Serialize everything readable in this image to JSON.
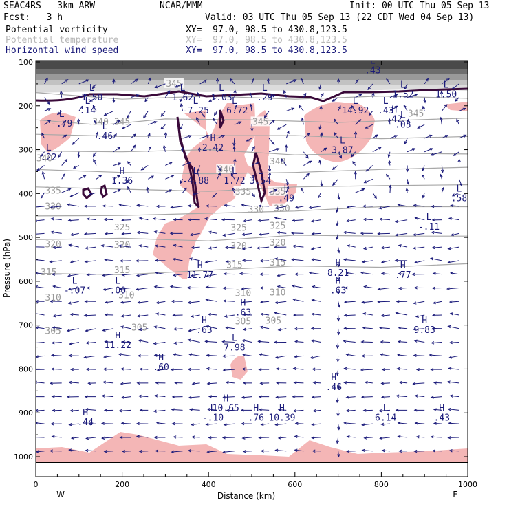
{
  "header": {
    "model": "SEAC4RS   3km ARW",
    "org": "NCAR/MMM",
    "init": "Init: 00 UTC Thu 05 Sep 13",
    "fcst": "Fcst:   3 h",
    "valid": "Valid: 03 UTC Thu 05 Sep 13 (22 CDT Wed 04 Sep 13)",
    "fields": [
      {
        "name": "Potential vorticity",
        "color": "#000000",
        "xy": "XY=  97.0, 98.5 to 430.8,123.5"
      },
      {
        "name": "Potential temperature",
        "color": "#b8b8b8",
        "xy": "XY=  97.0, 98.5 to 430.8,123.5"
      },
      {
        "name": "Horizontal wind speed",
        "color": "#1a1a7a",
        "xy": "XY=  97.0, 98.5 to 430.8,123.5"
      }
    ]
  },
  "chart_data": {
    "type": "cross-section",
    "xlabel": "Distance (km)",
    "ylabel": "Pressure (hPa)",
    "xlim": [
      0,
      1000
    ],
    "ylim": [
      1040,
      100
    ],
    "x_ticks": [
      0,
      200,
      400,
      600,
      800,
      1000
    ],
    "y_ticks": [
      100,
      200,
      300,
      400,
      500,
      600,
      700,
      800,
      900,
      1000
    ],
    "x_end_labels": {
      "left": "W",
      "right": "E"
    },
    "colors": {
      "pv_shading": "#f4b6b6",
      "stratosphere_shading": "#cccccc",
      "theta_contour": "#a8a8a8",
      "pv_contour": "#3a0a3a",
      "wind_vectors": "#1a1a7a"
    },
    "theta_contours": [
      {
        "label": "345",
        "points": [
          [
            0,
            170
          ],
          [
            200,
            185
          ],
          [
            400,
            178
          ],
          [
            600,
            185
          ],
          [
            800,
            178
          ],
          [
            1000,
            183
          ]
        ],
        "label_at": [
          [
            320,
            150
          ],
          [
            200,
            237
          ],
          [
            520,
            237
          ],
          [
            880,
            218
          ]
        ]
      },
      {
        "label": "340",
        "points": [
          [
            0,
            232
          ],
          [
            150,
            244
          ],
          [
            300,
            230
          ],
          [
            500,
            232
          ],
          [
            700,
            238
          ],
          [
            1000,
            228
          ]
        ],
        "label_at": [
          [
            20,
            320
          ],
          [
            150,
            237
          ],
          [
            440,
            345
          ],
          [
            560,
            327
          ]
        ]
      },
      {
        "label": "335",
        "points": [
          [
            0,
            265
          ],
          [
            200,
            270
          ],
          [
            400,
            268
          ],
          [
            600,
            268
          ],
          [
            800,
            275
          ],
          [
            1000,
            270
          ]
        ],
        "label_at": [
          [
            40,
            394
          ],
          [
            480,
            396
          ],
          [
            560,
            396
          ]
        ]
      },
      {
        "label": "330",
        "points": [
          [
            0,
            303
          ],
          [
            200,
            305
          ],
          [
            400,
            300
          ],
          [
            600,
            312
          ],
          [
            800,
            308
          ],
          [
            1000,
            310
          ]
        ],
        "label_at": [
          [
            40,
            430
          ],
          [
            510,
            437
          ],
          [
            570,
            435
          ]
        ]
      },
      {
        "label": "325",
        "points": [
          [
            0,
            345
          ],
          [
            200,
            352
          ],
          [
            400,
            355
          ],
          [
            600,
            352
          ],
          [
            800,
            345
          ],
          [
            1000,
            340
          ]
        ],
        "label_at": [
          [
            200,
            478
          ],
          [
            470,
            479
          ],
          [
            560,
            474
          ]
        ]
      },
      {
        "label": "320",
        "points": [
          [
            0,
            385
          ],
          [
            200,
            390
          ],
          [
            400,
            395
          ],
          [
            600,
            385
          ],
          [
            800,
            382
          ],
          [
            1000,
            380
          ]
        ],
        "label_at": [
          [
            40,
            516
          ],
          [
            200,
            518
          ],
          [
            470,
            520
          ],
          [
            560,
            512
          ]
        ]
      },
      {
        "label": "315",
        "points": [
          [
            0,
            451
          ],
          [
            200,
            450
          ],
          [
            400,
            445
          ],
          [
            600,
            440
          ],
          [
            800,
            430
          ],
          [
            1000,
            430
          ]
        ],
        "label_at": [
          [
            30,
            580
          ],
          [
            200,
            575
          ],
          [
            460,
            563
          ],
          [
            560,
            558
          ]
        ]
      },
      {
        "label": "310",
        "points": [
          [
            0,
            505
          ],
          [
            200,
            502
          ],
          [
            400,
            508
          ],
          [
            600,
            495
          ],
          [
            800,
            497
          ],
          [
            1000,
            497
          ]
        ],
        "label_at": [
          [
            40,
            638
          ],
          [
            210,
            632
          ],
          [
            480,
            628
          ],
          [
            560,
            626
          ]
        ]
      },
      {
        "label": "305",
        "points": [
          [
            0,
            582
          ],
          [
            200,
            585
          ],
          [
            400,
            575
          ],
          [
            600,
            565
          ],
          [
            800,
            568
          ],
          [
            1000,
            560
          ]
        ],
        "label_at": [
          [
            40,
            714
          ],
          [
            240,
            706
          ],
          [
            480,
            692
          ],
          [
            550,
            690
          ]
        ]
      }
    ],
    "extrema": [
      {
        "kind": "L",
        "value": ".43",
        "x": 780,
        "y": 113
      },
      {
        "kind": "L",
        "value": "1.50",
        "x": 130,
        "y": 175
      },
      {
        "kind": "L",
        "value": "1.62",
        "x": 340,
        "y": 175
      },
      {
        "kind": "L",
        "value": "1.03",
        "x": 430,
        "y": 175
      },
      {
        "kind": "L",
        "value": ".29",
        "x": 530,
        "y": 175
      },
      {
        "kind": "L",
        "value": "1.52",
        "x": 850,
        "y": 168
      },
      {
        "kind": "L",
        "value": "1.50",
        "x": 950,
        "y": 168
      },
      {
        "kind": "L",
        "value": ".14",
        "x": 120,
        "y": 205
      },
      {
        "kind": "L",
        "value": "-7.25",
        "x": 370,
        "y": 205
      },
      {
        "kind": "L",
        "value": "-6.72",
        "x": 460,
        "y": 205
      },
      {
        "kind": "L",
        "value": "14.92",
        "x": 740,
        "y": 205
      },
      {
        "kind": "L",
        "value": ".43",
        "x": 810,
        "y": 205
      },
      {
        "kind": "H",
        "value": ".42",
        "x": 830,
        "y": 225
      },
      {
        "kind": "L",
        "value": "-.79",
        "x": 60,
        "y": 235
      },
      {
        "kind": "L",
        "value": ".03",
        "x": 850,
        "y": 237
      },
      {
        "kind": "L",
        "value": ".46",
        "x": 160,
        "y": 263
      },
      {
        "kind": "H",
        "value": "2.42",
        "x": 410,
        "y": 290
      },
      {
        "kind": "L",
        "value": "3.87",
        "x": 710,
        "y": 295
      },
      {
        "kind": "L",
        "value": ".22",
        "x": 30,
        "y": 312
      },
      {
        "kind": "H",
        "value": "1.36",
        "x": 200,
        "y": 365
      },
      {
        "kind": "L",
        "value": "-4.88",
        "x": 370,
        "y": 365
      },
      {
        "kind": "L",
        "value": "1.72",
        "x": 460,
        "y": 365
      },
      {
        "kind": "L",
        "value": "3.54",
        "x": 520,
        "y": 365
      },
      {
        "kind": "L",
        "value": ".49",
        "x": 580,
        "y": 405
      },
      {
        "kind": "L",
        "value": ".58",
        "x": 980,
        "y": 405
      },
      {
        "kind": "L",
        "value": "-.11",
        "x": 910,
        "y": 470
      },
      {
        "kind": "H",
        "value": "11.77",
        "x": 380,
        "y": 580
      },
      {
        "kind": "H",
        "value": "8.21",
        "x": 700,
        "y": 575
      },
      {
        "kind": "H",
        "value": ".77",
        "x": 850,
        "y": 580
      },
      {
        "kind": "L",
        "value": "-.07",
        "x": 90,
        "y": 615
      },
      {
        "kind": "L",
        "value": ".00",
        "x": 190,
        "y": 615
      },
      {
        "kind": "H",
        "value": ".63",
        "x": 700,
        "y": 615
      },
      {
        "kind": "H",
        "value": ".63",
        "x": 480,
        "y": 665
      },
      {
        "kind": "H",
        "value": ".63",
        "x": 390,
        "y": 705
      },
      {
        "kind": "H",
        "value": "9.83",
        "x": 900,
        "y": 705
      },
      {
        "kind": "H",
        "value": "11.22",
        "x": 190,
        "y": 740
      },
      {
        "kind": "L",
        "value": "7.98",
        "x": 460,
        "y": 745
      },
      {
        "kind": "H",
        "value": ".60",
        "x": 290,
        "y": 790
      },
      {
        "kind": "H",
        "value": ".46",
        "x": 690,
        "y": 835
      },
      {
        "kind": "H",
        "value": "10.65",
        "x": 440,
        "y": 883
      },
      {
        "kind": "L",
        "value": "-.10",
        "x": 410,
        "y": 905
      },
      {
        "kind": "H",
        "value": ".76",
        "x": 510,
        "y": 905
      },
      {
        "kind": "H",
        "value": "10.39",
        "x": 570,
        "y": 905
      },
      {
        "kind": "L",
        "value": "6.14",
        "x": 810,
        "y": 905
      },
      {
        "kind": "H",
        "value": ".43",
        "x": 940,
        "y": 905
      },
      {
        "kind": "H",
        "value": ".44",
        "x": 115,
        "y": 915
      }
    ]
  }
}
